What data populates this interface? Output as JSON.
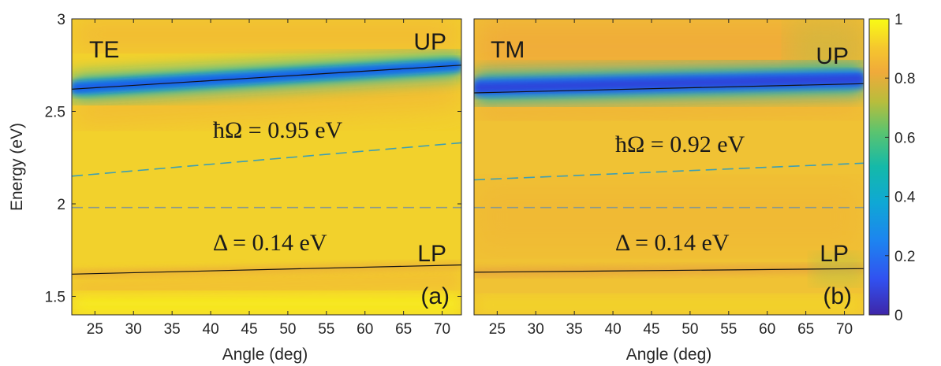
{
  "chart_data": [
    {
      "type": "heatmap",
      "panel_label": "(a)",
      "polarization": "TE",
      "upper_branch_label": "UP",
      "lower_branch_label": "LP",
      "rabi_annotation": "ħΩ = 0.95 eV",
      "detuning_annotation": "Δ = 0.14 eV",
      "xlabel": "Angle (deg)",
      "ylabel": "Energy (eV)",
      "xlim": [
        22,
        72.5
      ],
      "ylim": [
        1.4,
        3.0
      ],
      "xticks": [
        25,
        30,
        35,
        40,
        45,
        50,
        55,
        60,
        65,
        70
      ],
      "yticks": [
        1.5,
        2,
        2.5,
        3
      ],
      "ytick_labels": [
        "1.5",
        "2",
        "2.5",
        "3"
      ],
      "series": [
        {
          "name": "UP",
          "style": "solid",
          "x": [
            22,
            72.5
          ],
          "y": [
            2.62,
            2.75
          ]
        },
        {
          "name": "LP",
          "style": "solid",
          "x": [
            22,
            72.5
          ],
          "y": [
            1.62,
            1.67
          ]
        },
        {
          "style": "dashed",
          "x": [
            22,
            72.5
          ],
          "y": [
            2.15,
            2.33
          ]
        },
        {
          "style": "dashed",
          "x": [
            22,
            72.5
          ],
          "y": [
            1.98,
            1.98
          ]
        }
      ]
    },
    {
      "type": "heatmap",
      "panel_label": "(b)",
      "polarization": "TM",
      "upper_branch_label": "UP",
      "lower_branch_label": "LP",
      "rabi_annotation": "ħΩ = 0.92 eV",
      "detuning_annotation": "Δ = 0.14 eV",
      "xlabel": "Angle (deg)",
      "xlim": [
        22,
        72.5
      ],
      "ylim": [
        1.4,
        3.0
      ],
      "xticks": [
        25,
        30,
        35,
        40,
        45,
        50,
        55,
        60,
        65,
        70
      ],
      "series": [
        {
          "name": "UP",
          "style": "solid",
          "x": [
            22,
            72.5
          ],
          "y": [
            2.6,
            2.65
          ]
        },
        {
          "name": "LP",
          "style": "solid",
          "x": [
            22,
            72.5
          ],
          "y": [
            1.63,
            1.65
          ]
        },
        {
          "style": "dashed",
          "x": [
            22,
            72.5
          ],
          "y": [
            2.13,
            2.22
          ]
        },
        {
          "style": "dashed",
          "x": [
            22,
            72.5
          ],
          "y": [
            1.98,
            1.98
          ]
        }
      ]
    }
  ],
  "colorbar": {
    "range": [
      0,
      1
    ],
    "ticks": [
      0,
      0.2,
      0.4,
      0.6,
      0.8,
      1
    ],
    "tick_labels": [
      "0",
      "0.2",
      "0.4",
      "0.6",
      "0.8",
      "1"
    ],
    "colors": [
      "#3e26a8",
      "#2f64fc",
      "#0f9fd9",
      "#10b8b1",
      "#49c67a",
      "#b9bf3a",
      "#f2ab38",
      "#f2d12c",
      "#f9fb15"
    ]
  }
}
